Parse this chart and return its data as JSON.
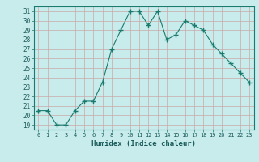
{
  "xdata": [
    0,
    1,
    2,
    3,
    4,
    5,
    6,
    7,
    8,
    9,
    10,
    11,
    12,
    13,
    14,
    15,
    16,
    17,
    18,
    19,
    20,
    21,
    22,
    23
  ],
  "ydata": [
    20.5,
    20.5,
    19,
    19,
    20.5,
    21.5,
    21.5,
    23.5,
    27,
    29,
    31,
    31,
    29.5,
    31,
    28,
    28.5,
    30,
    29.5,
    29,
    27.5,
    26.5,
    25.5,
    24.5,
    23.5
  ],
  "line_color": "#1a7a6e",
  "marker_color": "#1a7a6e",
  "bg_color": "#c8ecec",
  "grid_color": "#b0d8d8",
  "xlabel": "Humidex (Indice chaleur)",
  "ylim_min": 18.5,
  "ylim_max": 31.5,
  "yticks": [
    19,
    20,
    21,
    22,
    23,
    24,
    25,
    26,
    27,
    28,
    29,
    30,
    31
  ],
  "xticks": [
    0,
    1,
    2,
    3,
    4,
    5,
    6,
    7,
    8,
    9,
    10,
    11,
    12,
    13,
    14,
    15,
    16,
    17,
    18,
    19,
    20,
    21,
    22,
    23
  ]
}
